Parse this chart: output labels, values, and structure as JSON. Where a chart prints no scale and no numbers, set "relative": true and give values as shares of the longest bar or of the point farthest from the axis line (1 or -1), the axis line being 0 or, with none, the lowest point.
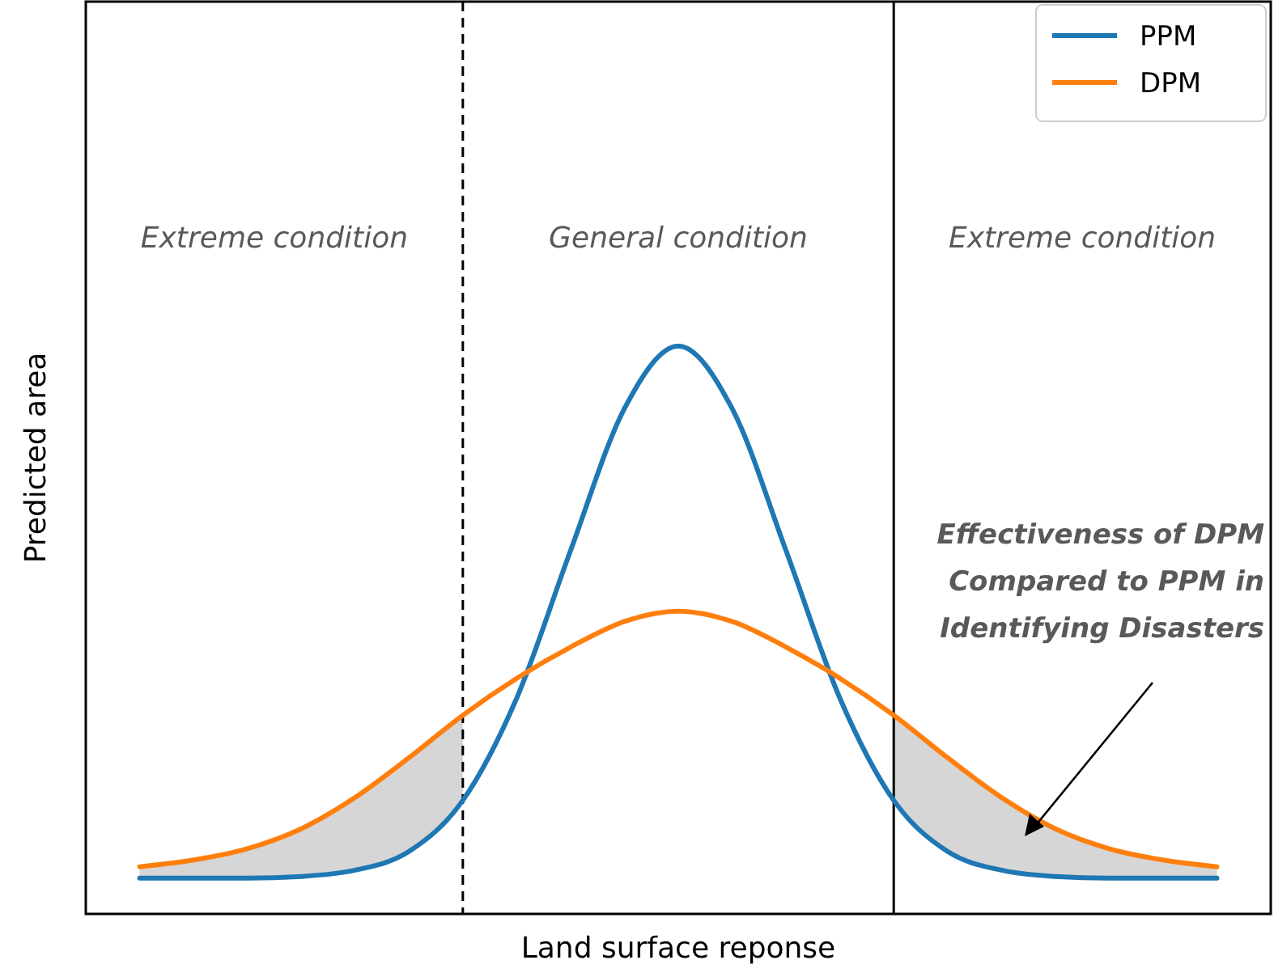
{
  "chart_data": {
    "type": "line",
    "xlabel": "Land surface reponse",
    "ylabel": "Predicted area",
    "relative": true,
    "tick_labels": false,
    "legend": "top right",
    "categories": [
      null,
      null,
      null,
      null,
      null,
      null,
      null,
      null,
      null,
      null,
      null,
      null,
      null,
      null,
      null,
      null,
      null,
      null,
      null,
      null,
      null
    ],
    "series": [
      {
        "name": "PPM",
        "color": "#1f77b4",
        "values": [
          0.063,
          0.063,
          0.063,
          0.066,
          0.077,
          0.11,
          0.2,
          0.38,
          0.64,
          0.89,
          1,
          0.89,
          0.64,
          0.38,
          0.2,
          0.11,
          0.077,
          0.066,
          0.063,
          0.063,
          0.063
        ]
      },
      {
        "name": "DPM",
        "color": "#ff7f0e",
        "values": [
          0.083,
          0.095,
          0.115,
          0.15,
          0.205,
          0.275,
          0.35,
          0.415,
          0.47,
          0.515,
          0.533,
          0.515,
          0.47,
          0.415,
          0.35,
          0.275,
          0.205,
          0.15,
          0.115,
          0.095,
          0.083
        ]
      }
    ],
    "annotations": [
      "Extreme condition",
      "General condition",
      "Extreme condition",
      "Effectiveness of DPM Compared to PPM in Identifying Disasters"
    ]
  }
}
